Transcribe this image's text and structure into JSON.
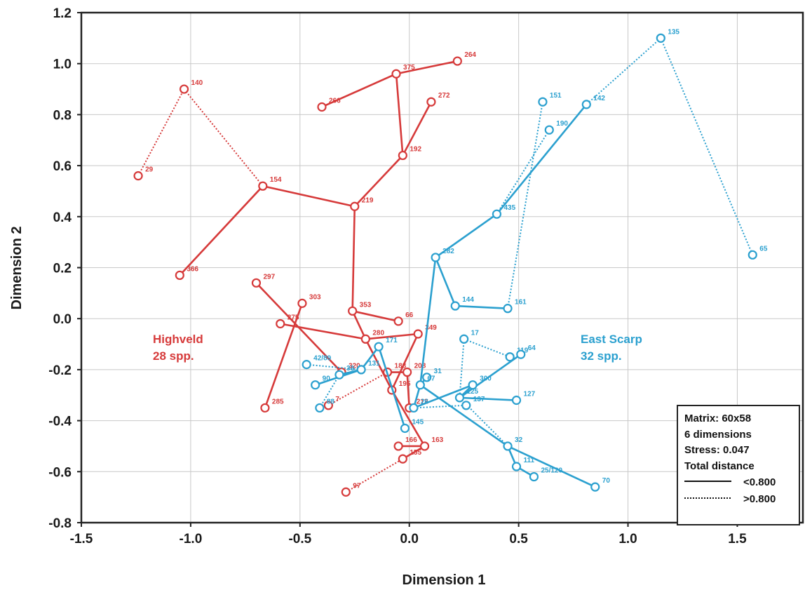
{
  "chart_data": {
    "type": "scatter",
    "xlabel": "Dimension 1",
    "ylabel": "Dimension 2",
    "xlim": [
      -1.5,
      1.8
    ],
    "ylim": [
      -0.8,
      1.2
    ],
    "xticks": [
      "-1.5",
      "-1.0",
      "-0.5",
      "0.0",
      "0.5",
      "1.0",
      "1.5"
    ],
    "yticks": [
      "1.2",
      "1.0",
      "0.8",
      "0.6",
      "0.4",
      "0.2",
      "0.0",
      "-0.2",
      "-0.4",
      "-0.6",
      "-0.8"
    ],
    "grid": true,
    "groups": [
      {
        "name_line1": "Highveld",
        "name_line2": "28 spp.",
        "color": "#d63a3a",
        "points": [
          {
            "id": "29",
            "x": -1.24,
            "y": 0.56
          },
          {
            "id": "140",
            "x": -1.03,
            "y": 0.9
          },
          {
            "id": "154",
            "x": -0.67,
            "y": 0.52
          },
          {
            "id": "366",
            "x": -1.05,
            "y": 0.17
          },
          {
            "id": "266",
            "x": -0.4,
            "y": 0.83
          },
          {
            "id": "375",
            "x": -0.06,
            "y": 0.96
          },
          {
            "id": "264",
            "x": 0.22,
            "y": 1.01
          },
          {
            "id": "272",
            "x": 0.1,
            "y": 0.85
          },
          {
            "id": "192",
            "x": -0.03,
            "y": 0.64
          },
          {
            "id": "219",
            "x": -0.25,
            "y": 0.44
          },
          {
            "id": "353",
            "x": -0.26,
            "y": 0.03
          },
          {
            "id": "66",
            "x": -0.05,
            "y": -0.01
          },
          {
            "id": "280",
            "x": -0.2,
            "y": -0.08
          },
          {
            "id": "349",
            "x": 0.04,
            "y": -0.06
          },
          {
            "id": "297",
            "x": -0.7,
            "y": 0.14
          },
          {
            "id": "303",
            "x": -0.49,
            "y": 0.06
          },
          {
            "id": "275",
            "x": -0.59,
            "y": -0.02
          },
          {
            "id": "320",
            "x": -0.31,
            "y": -0.21
          },
          {
            "id": "188",
            "x": -0.1,
            "y": -0.21
          },
          {
            "id": "208",
            "x": -0.01,
            "y": -0.21
          },
          {
            "id": "195",
            "x": -0.08,
            "y": -0.28
          },
          {
            "id": "212",
            "x": 0.0,
            "y": -0.35
          },
          {
            "id": "285",
            "x": -0.66,
            "y": -0.35
          },
          {
            "id": "7",
            "x": -0.37,
            "y": -0.34
          },
          {
            "id": "166",
            "x": -0.05,
            "y": -0.5
          },
          {
            "id": "163",
            "x": 0.07,
            "y": -0.5
          },
          {
            "id": "155",
            "x": -0.03,
            "y": -0.55
          },
          {
            "id": "97",
            "x": -0.29,
            "y": -0.68
          }
        ],
        "solid": [
          [
            "366",
            "154"
          ],
          [
            "154",
            "219"
          ],
          [
            "219",
            "192"
          ],
          [
            "192",
            "272"
          ],
          [
            "192",
            "375"
          ],
          [
            "375",
            "266"
          ],
          [
            "375",
            "264"
          ],
          [
            "219",
            "353"
          ],
          [
            "353",
            "66"
          ],
          [
            "353",
            "280"
          ],
          [
            "280",
            "349"
          ],
          [
            "280",
            "195"
          ],
          [
            "349",
            "195"
          ],
          [
            "297",
            "320"
          ],
          [
            "303",
            "285"
          ],
          [
            "275",
            "280"
          ],
          [
            "188",
            "208"
          ],
          [
            "208",
            "212"
          ],
          [
            "166",
            "163"
          ],
          [
            "163",
            "155"
          ],
          [
            "163",
            "195"
          ]
        ],
        "dotted": [
          [
            "29",
            "140"
          ],
          [
            "140",
            "154"
          ],
          [
            "97",
            "155"
          ],
          [
            "7",
            "188"
          ]
        ]
      },
      {
        "name_line1": "East Scarp",
        "name_line2": "32 spp.",
        "color": "#2ba0cf",
        "points": [
          {
            "id": "135",
            "x": 1.15,
            "y": 1.1
          },
          {
            "id": "151",
            "x": 0.61,
            "y": 0.85
          },
          {
            "id": "142",
            "x": 0.81,
            "y": 0.84
          },
          {
            "id": "190",
            "x": 0.64,
            "y": 0.74
          },
          {
            "id": "435",
            "x": 0.4,
            "y": 0.41
          },
          {
            "id": "65",
            "x": 1.57,
            "y": 0.25
          },
          {
            "id": "282",
            "x": 0.12,
            "y": 0.24
          },
          {
            "id": "144",
            "x": 0.21,
            "y": 0.05
          },
          {
            "id": "161",
            "x": 0.45,
            "y": 0.04
          },
          {
            "id": "17",
            "x": 0.25,
            "y": -0.08
          },
          {
            "id": "119",
            "x": 0.46,
            "y": -0.15
          },
          {
            "id": "64",
            "x": 0.51,
            "y": -0.14
          },
          {
            "id": "171",
            "x": -0.14,
            "y": -0.11
          },
          {
            "id": "131",
            "x": -0.22,
            "y": -0.2
          },
          {
            "id": "42/89",
            "x": -0.47,
            "y": -0.18
          },
          {
            "id": "33",
            "x": -0.32,
            "y": -0.22
          },
          {
            "id": "90",
            "x": -0.43,
            "y": -0.26
          },
          {
            "id": "88",
            "x": -0.41,
            "y": -0.35
          },
          {
            "id": "31",
            "x": 0.08,
            "y": -0.23
          },
          {
            "id": "67",
            "x": 0.05,
            "y": -0.26
          },
          {
            "id": "300",
            "x": 0.29,
            "y": -0.26
          },
          {
            "id": "125",
            "x": 0.23,
            "y": -0.31
          },
          {
            "id": "127",
            "x": 0.49,
            "y": -0.32
          },
          {
            "id": "137",
            "x": 0.26,
            "y": -0.34
          },
          {
            "id": "26",
            "x": 0.02,
            "y": -0.35
          },
          {
            "id": "145",
            "x": -0.02,
            "y": -0.43
          },
          {
            "id": "32",
            "x": 0.45,
            "y": -0.5
          },
          {
            "id": "111",
            "x": 0.49,
            "y": -0.58
          },
          {
            "id": "25/120",
            "x": 0.57,
            "y": -0.62
          },
          {
            "id": "70",
            "x": 0.85,
            "y": -0.66
          }
        ],
        "solid": [
          [
            "142",
            "435"
          ],
          [
            "435",
            "282"
          ],
          [
            "282",
            "144"
          ],
          [
            "144",
            "161"
          ],
          [
            "282",
            "67"
          ],
          [
            "67",
            "26"
          ],
          [
            "26",
            "300"
          ],
          [
            "300",
            "125"
          ],
          [
            "125",
            "127"
          ],
          [
            "125",
            "64"
          ],
          [
            "171",
            "145"
          ],
          [
            "131",
            "33"
          ],
          [
            "131",
            "90"
          ],
          [
            "31",
            "67"
          ],
          [
            "67",
            "32"
          ],
          [
            "32",
            "111"
          ],
          [
            "111",
            "25/120"
          ],
          [
            "32",
            "70"
          ],
          [
            "171",
            "131"
          ]
        ],
        "dotted": [
          [
            "135",
            "142"
          ],
          [
            "135",
            "65"
          ],
          [
            "151",
            "161"
          ],
          [
            "190",
            "435"
          ],
          [
            "17",
            "119"
          ],
          [
            "17",
            "125"
          ],
          [
            "125",
            "32"
          ],
          [
            "42/89",
            "131"
          ],
          [
            "33",
            "88"
          ],
          [
            "26",
            "137"
          ]
        ]
      }
    ],
    "legend": {
      "lines": [
        "Matrix: 60x58",
        "6 dimensions",
        "Stress: 0.047",
        "Total distance"
      ],
      "solid_label": "<0.800",
      "dotted_label": ">0.800",
      "position": "bottom-right"
    }
  }
}
